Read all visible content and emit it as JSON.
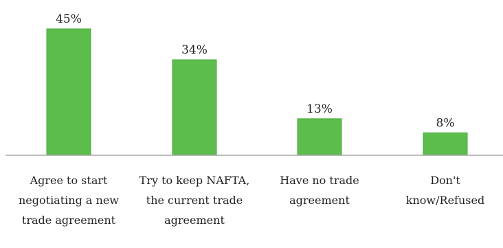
{
  "chart_data": {
    "type": "bar",
    "categories": [
      [
        "Agree to start",
        "negotiating a new",
        "trade agreement"
      ],
      [
        "Try to keep NAFTA,",
        "the current trade",
        "agreement"
      ],
      [
        "Have no trade",
        "agreement"
      ],
      [
        "Don't",
        "know/Refused"
      ]
    ],
    "values": [
      45,
      34,
      13,
      8
    ],
    "data_labels": [
      "45%",
      "34%",
      "13%",
      "8%"
    ],
    "title": "",
    "xlabel": "",
    "ylabel": "",
    "ylim": [
      0,
      45
    ],
    "grid": false,
    "legend": "none",
    "colors": {
      "bar": "#5cbd4c",
      "bar_edge": "#4ea83f",
      "axis": "#a6a6a6",
      "text": "#222222"
    }
  }
}
